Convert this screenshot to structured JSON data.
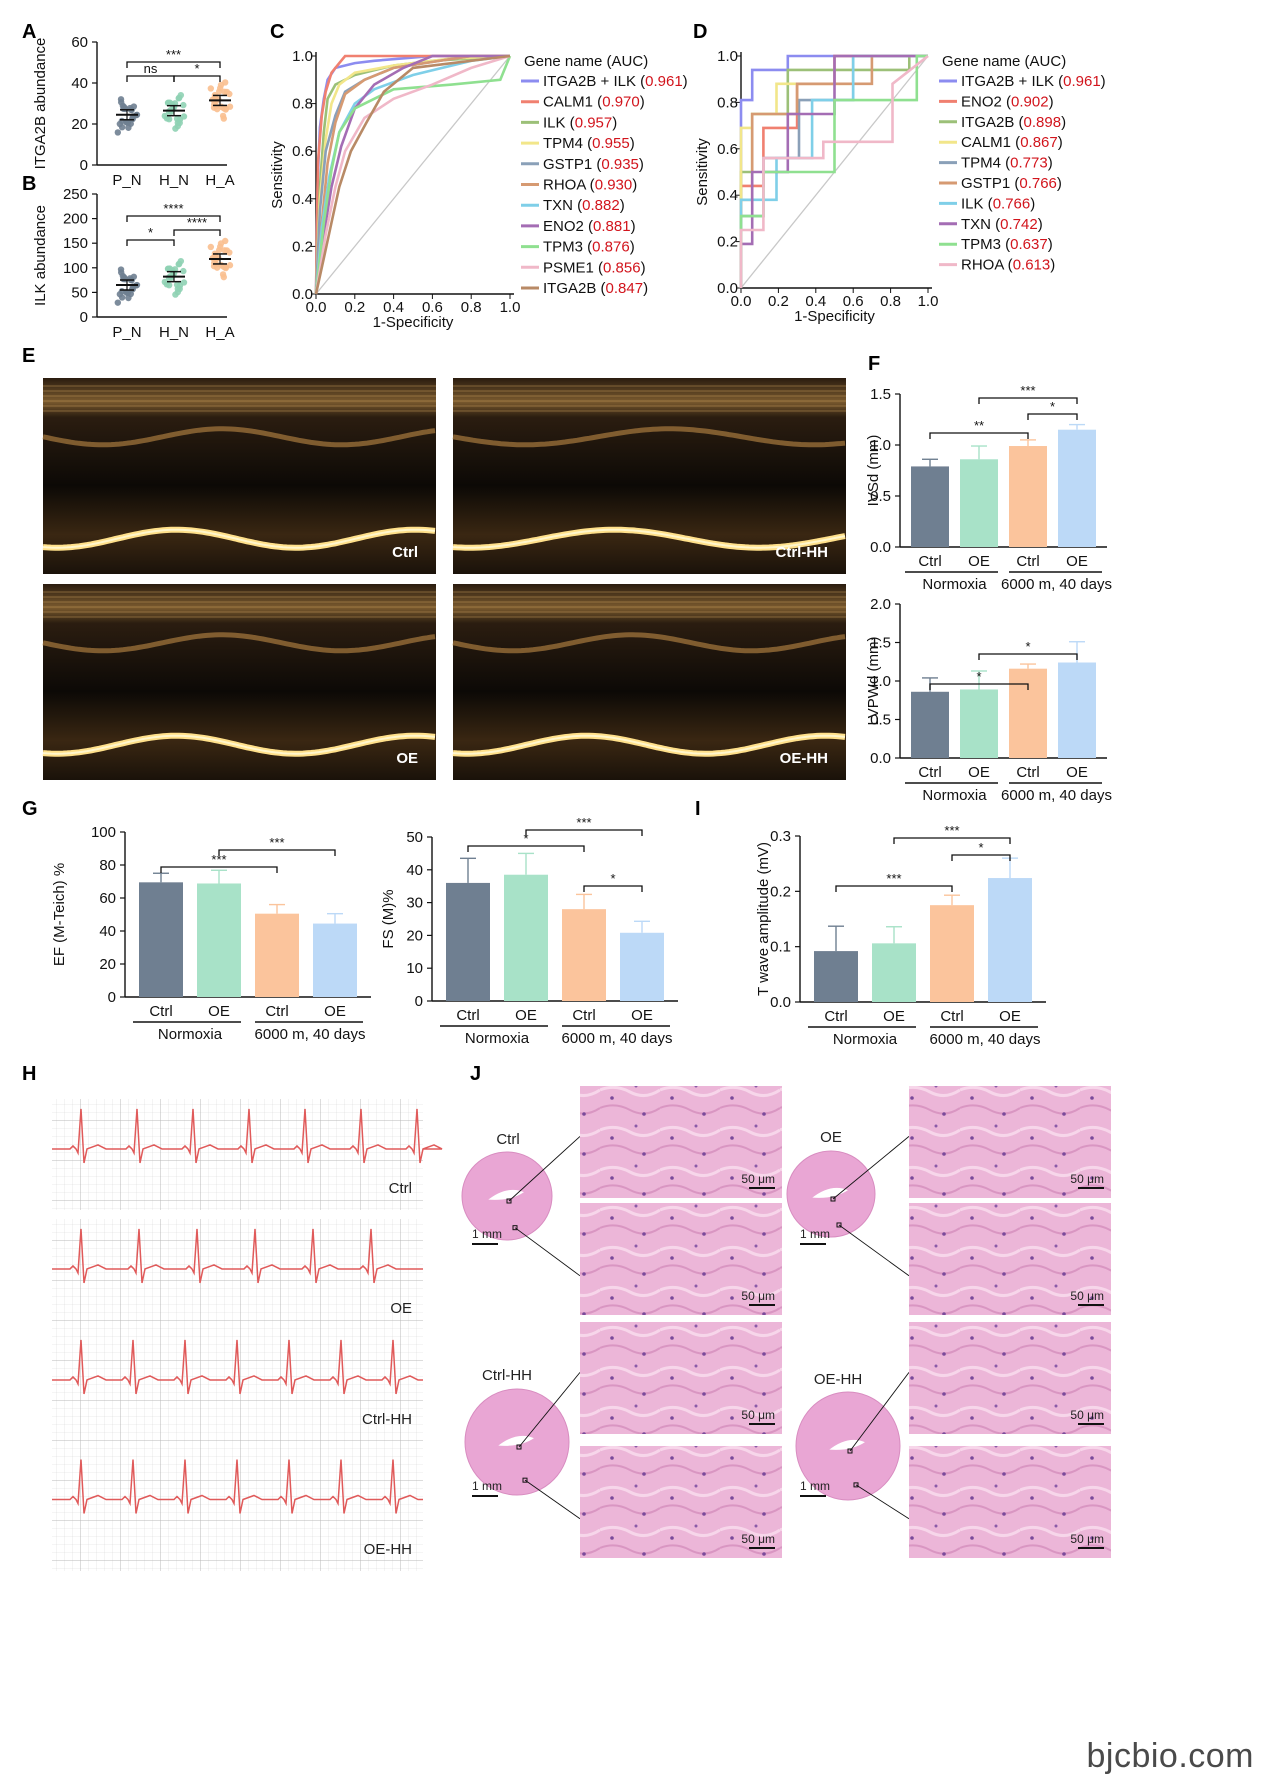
{
  "panels": {
    "A": "A",
    "B": "B",
    "C": "C",
    "D": "D",
    "E": "E",
    "F": "F",
    "G": "G",
    "H": "H",
    "I": "I",
    "J": "J"
  },
  "watermark": "bjcbio.com",
  "echo_labels": [
    "Ctrl",
    "Ctrl-HH",
    "OE",
    "OE-HH"
  ],
  "ecg_labels": [
    "Ctrl",
    "OE",
    "Ctrl-HH",
    "OE-HH"
  ],
  "histology": {
    "group_labels": [
      "Ctrl",
      "OE",
      "Ctrl-HH",
      "OE-HH"
    ],
    "scale_small": "1 mm",
    "scale_large": "50 μm"
  },
  "chart_data": [
    {
      "id": "A",
      "type": "scatter",
      "ylabel": "ITGA2B abundance",
      "categories": [
        "P_N",
        "H_N",
        "H_A"
      ],
      "ylim": [
        0,
        60
      ],
      "yticks": [
        0,
        20,
        40,
        60
      ],
      "means": [
        24.5,
        26.5,
        31.5
      ],
      "colors": [
        "#6f7f91",
        "#8fd1b4",
        "#f9bf8f"
      ],
      "significance": [
        {
          "from": 0,
          "to": 2,
          "label": "***"
        },
        {
          "from": 0,
          "to": 1,
          "label": "ns"
        },
        {
          "from": 1,
          "to": 2,
          "label": "*"
        }
      ]
    },
    {
      "id": "B",
      "type": "scatter",
      "ylabel": "ILK abundance",
      "categories": [
        "P_N",
        "H_N",
        "H_A"
      ],
      "ylim": [
        0,
        250
      ],
      "yticks": [
        0,
        50,
        100,
        150,
        200,
        250
      ],
      "means": [
        65,
        82,
        118
      ],
      "colors": [
        "#6f7f91",
        "#8fd1b4",
        "#f9bf8f"
      ],
      "significance": [
        {
          "from": 0,
          "to": 2,
          "label": "****"
        },
        {
          "from": 0,
          "to": 1,
          "label": "*"
        },
        {
          "from": 1,
          "to": 2,
          "label": "****"
        }
      ]
    },
    {
      "id": "C",
      "type": "line",
      "xlabel": "1-Specificity",
      "ylabel": "Sensitivity",
      "xlim": [
        0,
        1
      ],
      "ylim": [
        0,
        1
      ],
      "xticks": [
        "0.0",
        "0.2",
        "0.4",
        "0.6",
        "0.8",
        "1.0"
      ],
      "yticks": [
        "0.0",
        "0.2",
        "0.4",
        "0.6",
        "0.8",
        "1.0"
      ],
      "legend_title": "Gene name (AUC)",
      "series": [
        {
          "name": "ITGA2B + ILK",
          "auc": "0.961",
          "color": "#8c8cf0",
          "x": [
            0,
            0.01,
            0.02,
            0.04,
            0.06,
            0.1,
            0.2,
            0.3,
            0.6,
            1
          ],
          "y": [
            0,
            0.5,
            0.7,
            0.82,
            0.9,
            0.95,
            0.97,
            0.98,
            1,
            1
          ]
        },
        {
          "name": "CALM1",
          "auc": "0.970",
          "color": "#f08070",
          "x": [
            0,
            0.01,
            0.03,
            0.05,
            0.08,
            0.12,
            0.15,
            0.3,
            1
          ],
          "y": [
            0,
            0.55,
            0.75,
            0.85,
            0.93,
            0.97,
            1,
            1,
            1
          ]
        },
        {
          "name": "ILK",
          "auc": "0.957",
          "color": "#9cc078",
          "x": [
            0,
            0.02,
            0.04,
            0.06,
            0.1,
            0.2,
            0.4,
            0.6,
            1
          ],
          "y": [
            0,
            0.45,
            0.68,
            0.82,
            0.88,
            0.92,
            0.96,
            0.98,
            1
          ]
        },
        {
          "name": "TPM4",
          "auc": "0.955",
          "color": "#f2e68a",
          "x": [
            0,
            0.02,
            0.05,
            0.08,
            0.12,
            0.2,
            0.4,
            0.7,
            1
          ],
          "y": [
            0,
            0.4,
            0.65,
            0.8,
            0.88,
            0.93,
            0.96,
            0.99,
            1
          ]
        },
        {
          "name": "GSTP1",
          "auc": "0.935",
          "color": "#8aa0b8",
          "x": [
            0,
            0.02,
            0.05,
            0.1,
            0.15,
            0.25,
            0.4,
            0.8,
            1
          ],
          "y": [
            0,
            0.35,
            0.6,
            0.75,
            0.85,
            0.9,
            0.95,
            1,
            1
          ]
        },
        {
          "name": "RHOA",
          "auc": "0.930",
          "color": "#d69a72",
          "x": [
            0,
            0.03,
            0.06,
            0.1,
            0.15,
            0.25,
            0.4,
            0.8,
            1
          ],
          "y": [
            0,
            0.3,
            0.55,
            0.72,
            0.84,
            0.9,
            0.95,
            1,
            1
          ]
        },
        {
          "name": "TXN",
          "auc": "0.882",
          "color": "#7fcfe8",
          "x": [
            0,
            0.03,
            0.07,
            0.12,
            0.2,
            0.3,
            0.5,
            0.8,
            1
          ],
          "y": [
            0,
            0.28,
            0.5,
            0.68,
            0.8,
            0.86,
            0.92,
            0.98,
            1
          ]
        },
        {
          "name": "ENO2",
          "auc": "0.881",
          "color": "#a46db4",
          "x": [
            0,
            0.04,
            0.08,
            0.13,
            0.2,
            0.3,
            0.45,
            0.6,
            1
          ],
          "y": [
            0,
            0.25,
            0.45,
            0.62,
            0.78,
            0.88,
            0.95,
            1,
            1
          ]
        },
        {
          "name": "TPM3",
          "auc": "0.876",
          "color": "#8fe090",
          "x": [
            0,
            0.04,
            0.08,
            0.12,
            0.2,
            0.4,
            0.7,
            0.95,
            1
          ],
          "y": [
            0,
            0.3,
            0.52,
            0.68,
            0.78,
            0.86,
            0.88,
            0.9,
            1
          ]
        },
        {
          "name": "PSME1",
          "auc": "0.856",
          "color": "#f0b8c8",
          "x": [
            0,
            0.05,
            0.1,
            0.15,
            0.25,
            0.4,
            0.6,
            0.8,
            1
          ],
          "y": [
            0,
            0.25,
            0.45,
            0.6,
            0.74,
            0.82,
            0.88,
            0.95,
            1
          ]
        },
        {
          "name": "ITGA2B",
          "auc": "0.847",
          "color": "#b88a66",
          "x": [
            0,
            0.04,
            0.08,
            0.12,
            0.18,
            0.26,
            0.35,
            0.5,
            1
          ],
          "y": [
            0,
            0.15,
            0.3,
            0.45,
            0.6,
            0.72,
            0.85,
            0.95,
            1
          ]
        }
      ]
    },
    {
      "id": "D",
      "type": "line",
      "xlabel": "1-Specificity",
      "ylabel": "Sensitivity",
      "xlim": [
        0,
        1
      ],
      "ylim": [
        0,
        1
      ],
      "xticks": [
        "0.0",
        "0.2",
        "0.4",
        "0.6",
        "0.8",
        "1.0"
      ],
      "yticks": [
        "0.0",
        "0.2",
        "0.4",
        "0.6",
        "0.8",
        "1.0"
      ],
      "legend_title": "Gene name (AUC)",
      "series": [
        {
          "name": "ITGA2B + ILK",
          "auc": "0.961",
          "color": "#8c8cf0",
          "x": [
            0,
            0,
            0.06,
            0.06,
            0.25,
            0.25,
            1
          ],
          "y": [
            0,
            0.81,
            0.81,
            0.94,
            0.94,
            1,
            1
          ]
        },
        {
          "name": "ENO2",
          "auc": "0.902",
          "color": "#f08070",
          "x": [
            0,
            0,
            0.12,
            0.12,
            0.3,
            0.3,
            0.5,
            0.5,
            1
          ],
          "y": [
            0,
            0.44,
            0.44,
            0.69,
            0.69,
            0.88,
            0.88,
            1,
            1
          ]
        },
        {
          "name": "ITGA2B",
          "auc": "0.898",
          "color": "#9cc078",
          "x": [
            0,
            0,
            0.06,
            0.06,
            0.25,
            0.25,
            0.9,
            0.9,
            1
          ],
          "y": [
            0,
            0.5,
            0.5,
            0.75,
            0.75,
            0.94,
            0.94,
            1,
            1
          ]
        },
        {
          "name": "CALM1",
          "auc": "0.867",
          "color": "#f2e68a",
          "x": [
            0,
            0,
            0.06,
            0.06,
            0.19,
            0.19,
            0.6,
            0.6,
            1
          ],
          "y": [
            0,
            0.69,
            0.69,
            0.75,
            0.75,
            0.88,
            0.88,
            1,
            1
          ]
        },
        {
          "name": "TPM4",
          "auc": "0.773",
          "color": "#8aa0b8",
          "x": [
            0,
            0,
            0.12,
            0.12,
            0.31,
            0.31,
            0.6,
            0.6,
            1
          ],
          "y": [
            0,
            0.31,
            0.31,
            0.56,
            0.56,
            0.81,
            0.81,
            1,
            1
          ]
        },
        {
          "name": "GSTP1",
          "auc": "0.766",
          "color": "#d69a72",
          "x": [
            0,
            0,
            0.06,
            0.06,
            0.3,
            0.3,
            0.7,
            0.7,
            1
          ],
          "y": [
            0,
            0.38,
            0.38,
            0.75,
            0.75,
            0.88,
            0.88,
            1,
            1
          ]
        },
        {
          "name": "ILK",
          "auc": "0.766",
          "color": "#7fcfe8",
          "x": [
            0,
            0,
            0.19,
            0.19,
            0.38,
            0.38,
            0.6,
            0.6,
            1
          ],
          "y": [
            0,
            0.38,
            0.38,
            0.56,
            0.56,
            0.81,
            0.81,
            1,
            1
          ]
        },
        {
          "name": "TXN",
          "auc": "0.742",
          "color": "#a46db4",
          "x": [
            0,
            0,
            0.06,
            0.06,
            0.25,
            0.25,
            0.5,
            0.5,
            1
          ],
          "y": [
            0,
            0.19,
            0.19,
            0.5,
            0.5,
            0.75,
            0.75,
            1,
            1
          ]
        },
        {
          "name": "TPM3",
          "auc": "0.637",
          "color": "#8fe090",
          "x": [
            0,
            0,
            0.12,
            0.12,
            0.5,
            0.5,
            0.94,
            0.94,
            1
          ],
          "y": [
            0,
            0.31,
            0.31,
            0.5,
            0.5,
            0.81,
            0.81,
            1,
            1
          ]
        },
        {
          "name": "RHOA",
          "auc": "0.613",
          "color": "#f0b8c8",
          "x": [
            0,
            0,
            0.12,
            0.12,
            0.44,
            0.44,
            0.81,
            0.81,
            1
          ],
          "y": [
            0,
            0.25,
            0.25,
            0.56,
            0.56,
            0.63,
            0.63,
            0.88,
            1
          ]
        }
      ]
    },
    {
      "id": "F1",
      "type": "bar",
      "ylabel": "IVSd (mm)",
      "categories": [
        "Ctrl",
        "OE",
        "Ctrl",
        "OE"
      ],
      "groups": [
        "Normoxia",
        "6000 m, 40 days"
      ],
      "values": [
        0.79,
        0.86,
        0.99,
        1.15
      ],
      "errors": [
        0.07,
        0.13,
        0.06,
        0.05
      ],
      "ylim": [
        0,
        1.5
      ],
      "yticks": [
        "0.0",
        "0.5",
        "1.0",
        "1.5"
      ],
      "colors": [
        "#6f7f91",
        "#a8e2c8",
        "#fbc49c",
        "#bcd9f7"
      ],
      "significance": [
        {
          "from": 1,
          "to": 3,
          "label": "***"
        },
        {
          "from": 2,
          "to": 3,
          "label": "*"
        },
        {
          "from": 0,
          "to": 2,
          "label": "**"
        }
      ]
    },
    {
      "id": "F2",
      "type": "bar",
      "ylabel": "LVPWd (mm)",
      "categories": [
        "Ctrl",
        "OE",
        "Ctrl",
        "OE"
      ],
      "groups": [
        "Normoxia",
        "6000 m, 40 days"
      ],
      "values": [
        0.86,
        0.89,
        1.16,
        1.24
      ],
      "errors": [
        0.18,
        0.24,
        0.06,
        0.27
      ],
      "ylim": [
        0,
        2.0
      ],
      "yticks": [
        "0.0",
        "0.5",
        "1.0",
        "1.5",
        "2.0"
      ],
      "colors": [
        "#6f7f91",
        "#a8e2c8",
        "#fbc49c",
        "#bcd9f7"
      ],
      "significance": [
        {
          "from": 1,
          "to": 3,
          "label": "*"
        },
        {
          "from": 0,
          "to": 2,
          "label": "*"
        }
      ]
    },
    {
      "id": "G1",
      "type": "bar",
      "ylabel": "EF (M-Teich) %",
      "categories": [
        "Ctrl",
        "OE",
        "Ctrl",
        "OE"
      ],
      "groups": [
        "Normoxia",
        "6000 m, 40 days"
      ],
      "values": [
        69.5,
        68.8,
        50.5,
        44.5
      ],
      "errors": [
        5.5,
        8,
        5.5,
        6
      ],
      "ylim": [
        0,
        100
      ],
      "yticks": [
        "0",
        "20",
        "40",
        "60",
        "80",
        "100"
      ],
      "colors": [
        "#6f7f91",
        "#a8e2c8",
        "#fbc49c",
        "#bcd9f7"
      ],
      "significance": [
        {
          "from": 1,
          "to": 3,
          "label": "***"
        },
        {
          "from": 0,
          "to": 2,
          "label": "***"
        }
      ]
    },
    {
      "id": "G2",
      "type": "bar",
      "ylabel": "FS (M)%",
      "categories": [
        "Ctrl",
        "OE",
        "Ctrl",
        "OE"
      ],
      "groups": [
        "Normoxia",
        "6000 m, 40 days"
      ],
      "values": [
        36,
        38.5,
        28,
        20.8
      ],
      "errors": [
        7.5,
        6.5,
        4.5,
        3.5
      ],
      "ylim": [
        0,
        50
      ],
      "yticks": [
        "0",
        "10",
        "20",
        "30",
        "40",
        "50"
      ],
      "colors": [
        "#6f7f91",
        "#a8e2c8",
        "#fbc49c",
        "#bcd9f7"
      ],
      "significance": [
        {
          "from": 1,
          "to": 3,
          "label": "***"
        },
        {
          "from": 0,
          "to": 2,
          "label": "*"
        },
        {
          "from": 2,
          "to": 3,
          "label": "*"
        }
      ]
    },
    {
      "id": "I",
      "type": "bar",
      "ylabel": "T wave amplitude (mV)",
      "categories": [
        "Ctrl",
        "OE",
        "Ctrl",
        "OE"
      ],
      "groups": [
        "Normoxia",
        "6000 m, 40 days"
      ],
      "values": [
        0.092,
        0.106,
        0.175,
        0.224
      ],
      "errors": [
        0.045,
        0.03,
        0.018,
        0.036
      ],
      "ylim": [
        0,
        0.3
      ],
      "yticks": [
        "0.0",
        "0.1",
        "0.2",
        "0.3"
      ],
      "colors": [
        "#6f7f91",
        "#a8e2c8",
        "#fbc49c",
        "#bcd9f7"
      ],
      "significance": [
        {
          "from": 1,
          "to": 3,
          "label": "***"
        },
        {
          "from": 2,
          "to": 3,
          "label": "*"
        },
        {
          "from": 0,
          "to": 2,
          "label": "***"
        }
      ]
    }
  ]
}
